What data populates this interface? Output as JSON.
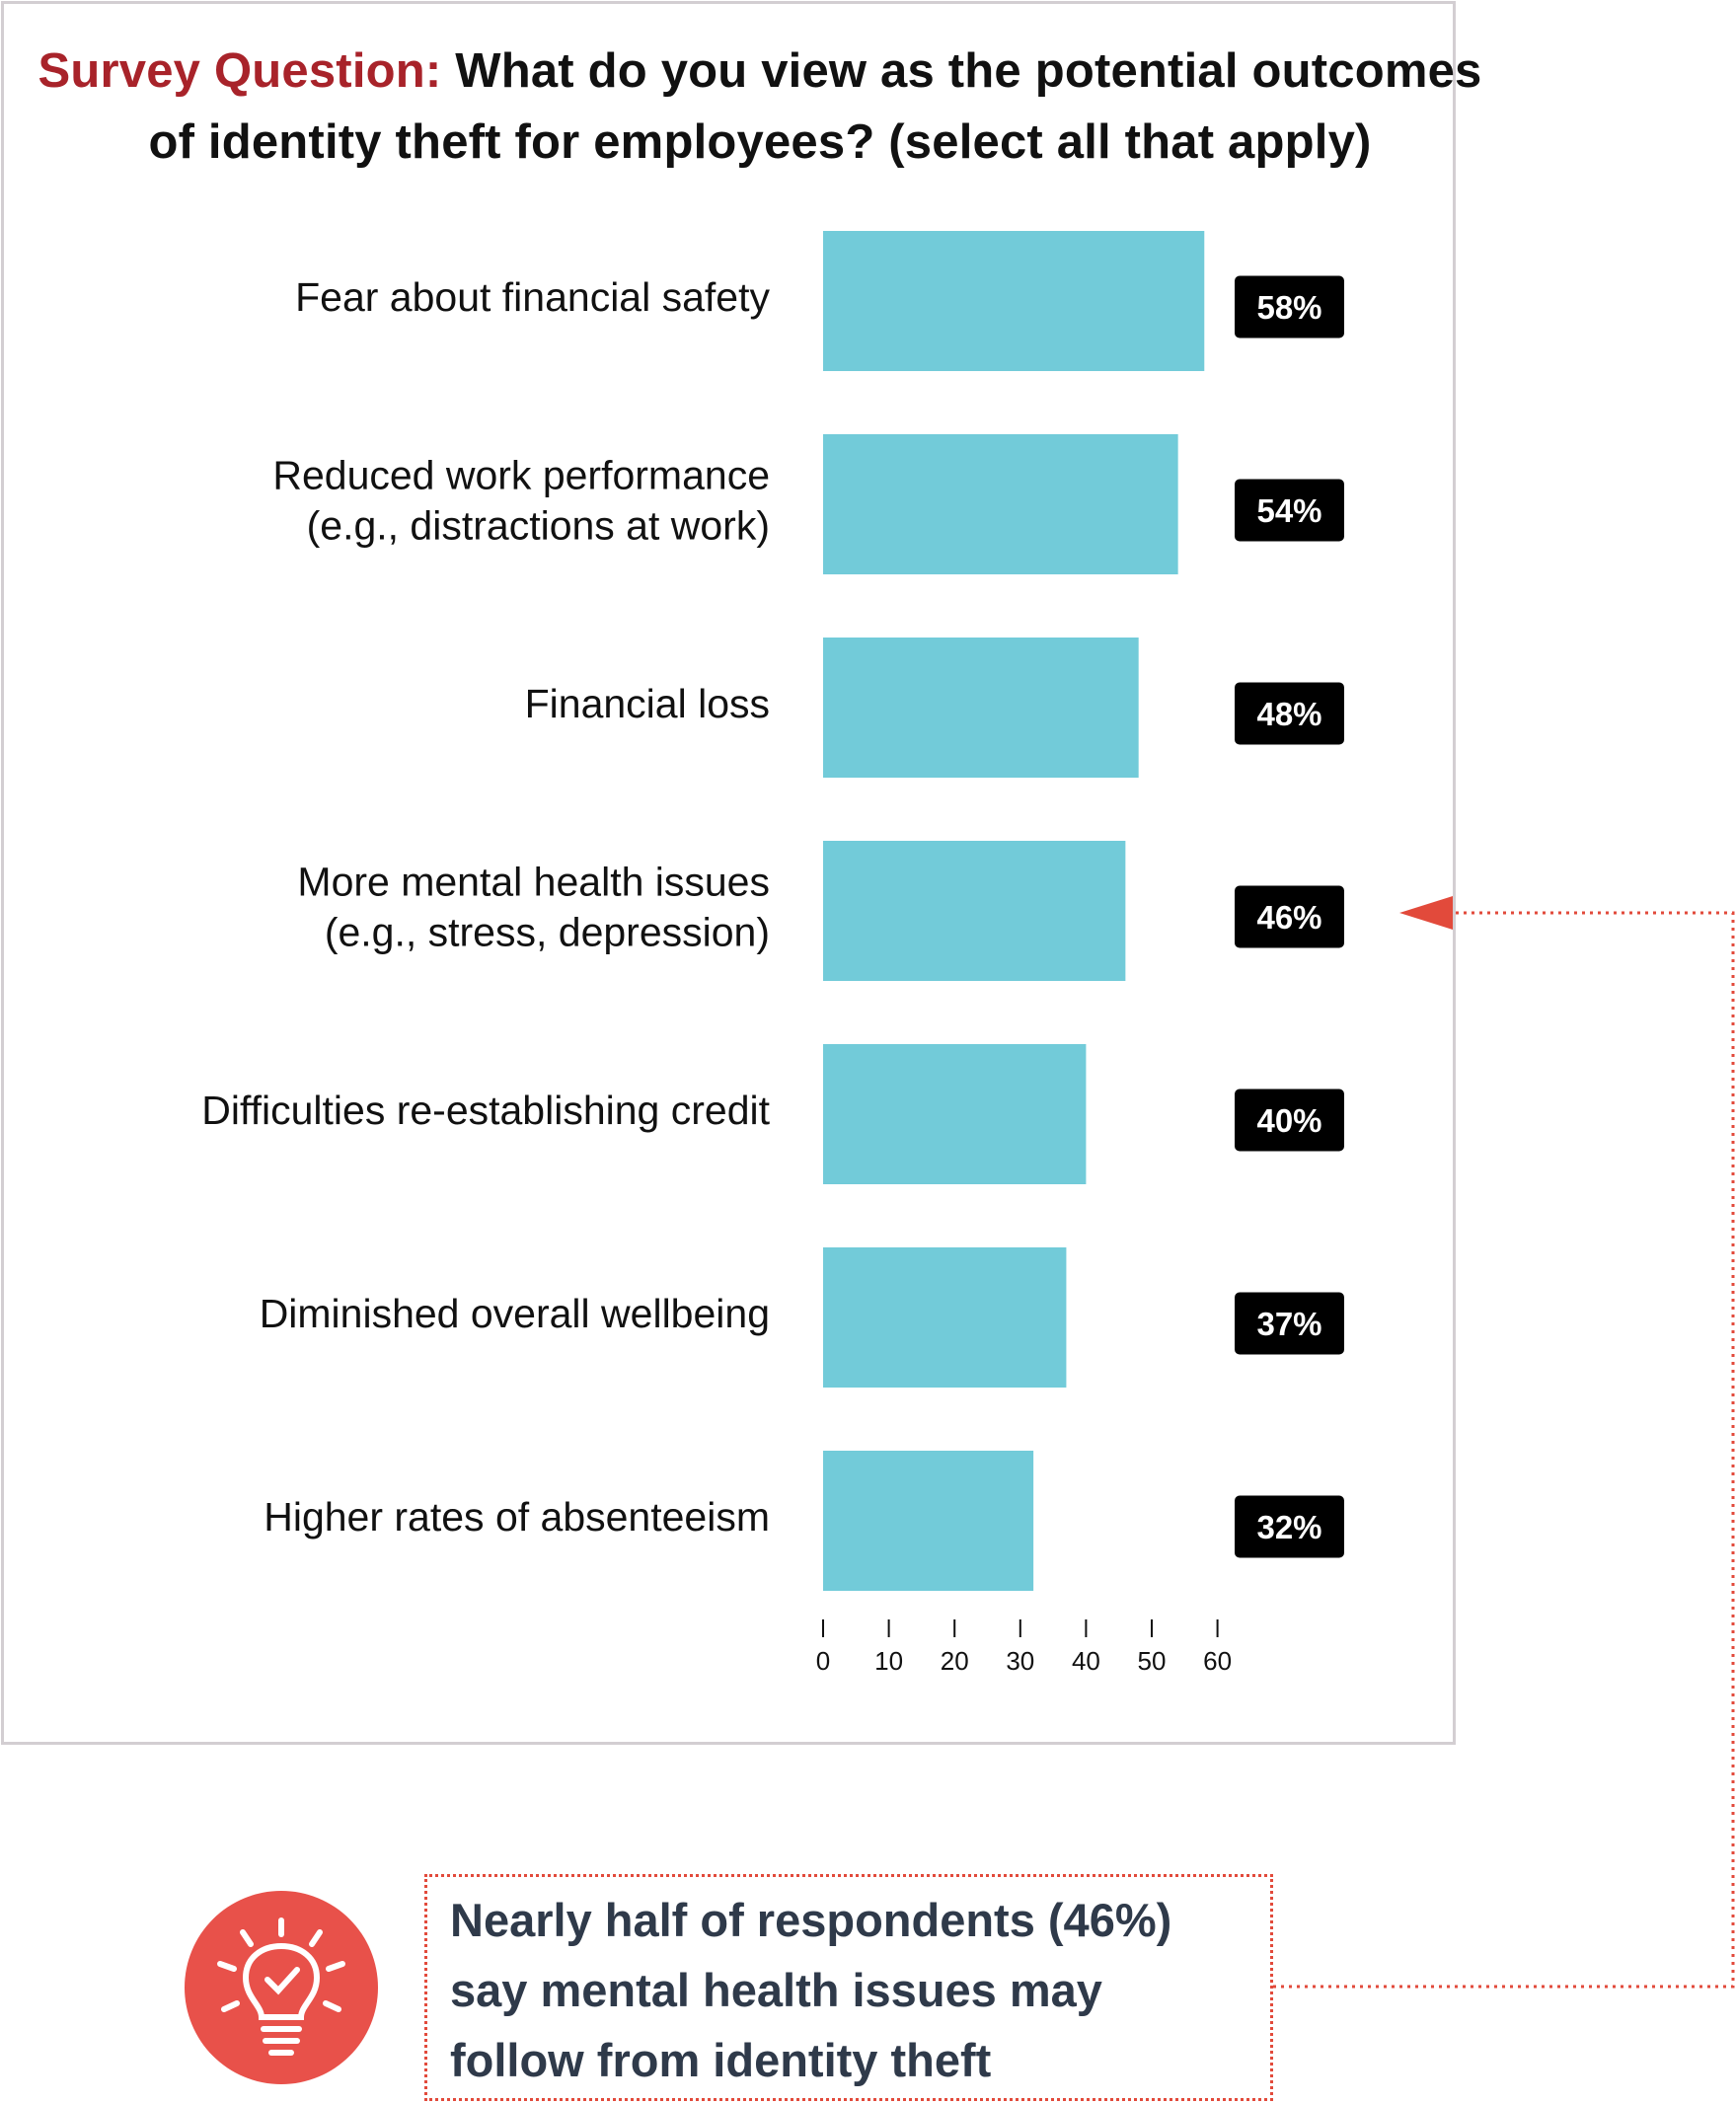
{
  "title": {
    "label": "Survey Question:",
    "line1": "What do you view as the potential outcomes",
    "line2": "of identity theft for employees? (select all that apply)"
  },
  "colors": {
    "bar": "#72cbd9",
    "badge": "#000000",
    "accent_red": "#a8232a",
    "callout_red": "#e24a3b",
    "panel_border": "#d3ced2"
  },
  "chart_data": {
    "type": "bar",
    "orientation": "horizontal",
    "categories": [
      [
        "Fear about financial safety"
      ],
      [
        "Reduced work performance",
        "(e.g., distractions at work)"
      ],
      [
        "Financial loss"
      ],
      [
        "More mental health issues",
        "(e.g., stress, depression)"
      ],
      [
        "Difficulties re-establishing credit"
      ],
      [
        "Diminished overall wellbeing"
      ],
      [
        "Higher rates of absenteeism"
      ]
    ],
    "values": [
      58,
      54,
      48,
      46,
      40,
      37,
      32
    ],
    "data_labels": [
      "58%",
      "54%",
      "48%",
      "46%",
      "40%",
      "37%",
      "32%"
    ],
    "x_ticks": [
      0,
      10,
      20,
      30,
      40,
      50,
      60
    ],
    "xlim": [
      0,
      60
    ],
    "grid": false,
    "highlighted_category_index": 3
  },
  "callout": {
    "lines": [
      "Nearly half of respondents (46%)",
      "say mental health issues may",
      "follow from identity theft"
    ],
    "icon": "lightbulb-check-icon"
  }
}
